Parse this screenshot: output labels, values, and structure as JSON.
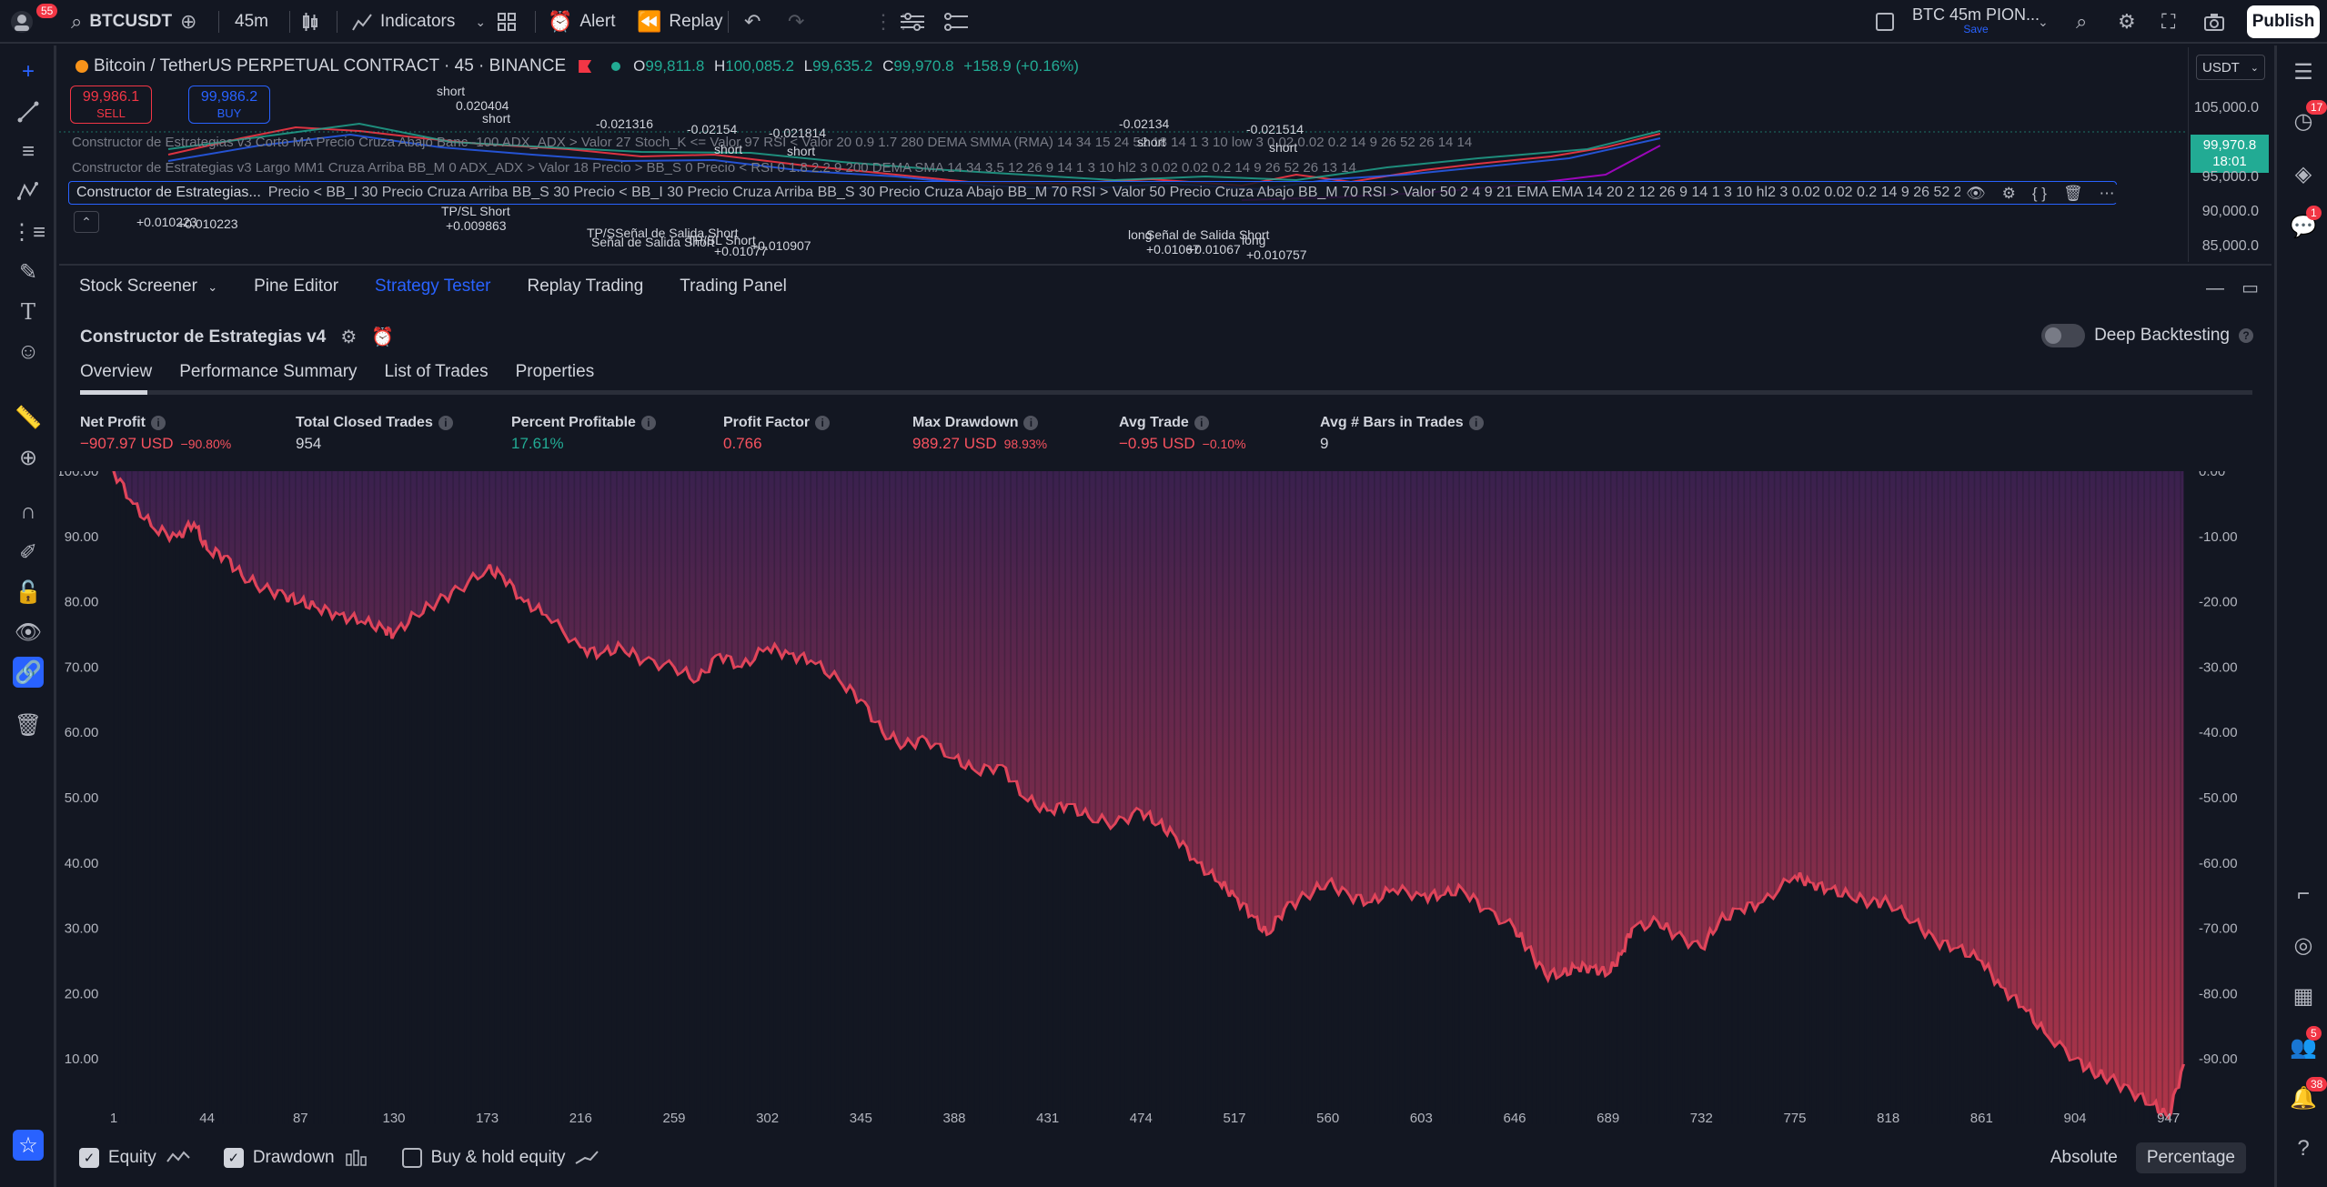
{
  "topbar": {
    "notif_badge": "55",
    "symbol": "BTCUSDT",
    "interval": "45m",
    "indicators": "Indicators",
    "alert": "Alert",
    "replay": "Replay",
    "layout_name": "BTC 45m PION...",
    "layout_save": "Save",
    "publish": "Publish"
  },
  "chart": {
    "title": "Bitcoin / TetherUS PERPETUAL CONTRACT · 45 · BINANCE",
    "ohlc": {
      "o_label": "O",
      "o": "99,811.8",
      "h_label": "H",
      "h": "100,085.2",
      "l_label": "L",
      "l": "99,635.2",
      "c_label": "C",
      "c": "99,970.8",
      "change": "+158.9 (+0.16%)"
    },
    "sell_price": "99,986.1",
    "sell_label": "SELL",
    "buy_price": "99,986.2",
    "buy_label": "BUY",
    "currency": "USDT",
    "price_ticks": [
      "105,000.0",
      "95,000.0",
      "90,000.0",
      "85,000.0"
    ],
    "current_price": "99,970.8",
    "current_time": "18:01",
    "indicator_1": "Constructor de Estrategias v3 Corto MA Precio Cruza Abajo Banc -100 ADX_ADX > Valor 27 Stoch_K <= Valor 97 RSI < Valor 20 0.9 1.7 280 DEMA SMMA (RMA) 14 34 15 24 52 18 14 1 3 10 low 3 0.02 0.02 0.2 14 9 26 52 26 14 14",
    "indicator_2": "Constructor de Estrategias v3 Largo MM1 Cruza Arriba BB_M 0 ADX_ADX > Valor 18 Precio > BB_S 0 Precio < RSI 0 1.8 2.2 9 200 DEMA SMA 14 34 3.5 12 26 9 14 1 3 10 hl2 3 0.02 0.02 0.2 14 9 26 52 26 13 14",
    "indicator_3_name": "Constructor de Estrategias...",
    "indicator_3_params": "Precio < BB_I 30 Precio Cruza Arriba BB_S 30 Precio < BB_I 30 Precio Cruza Arriba BB_S 30 Precio Cruza Abajo BB_M 70 RSI > Valor 50 Precio Cruza Abajo BB_M 70 RSI > Valor 50 2 4 9 21 EMA EMA 14 20 2 12 26 9 14 1 3 10 hl2 3 0.02 0.02 0.2 14 9 26 52 26 1...",
    "annotations": [
      "short",
      "0.020404",
      "short",
      "-0.021316",
      "-0.02154",
      "short",
      "-0.021814",
      "short",
      "-0.02134",
      "short",
      "-0.021514",
      "short",
      "+0.010223",
      "+0.010223",
      "TP/SL Short",
      "+0.009863",
      "TP/SSeñal de Salida Short",
      "Señal de Salida Short",
      "TP/SL Short",
      "+0.010907",
      "+0.01077",
      "Señal de Salida Short",
      "+0.01067",
      "+0.01067",
      "long",
      "long",
      "+0.010757"
    ]
  },
  "panel": {
    "tabs": [
      "Stock Screener",
      "Pine Editor",
      "Strategy Tester",
      "Replay Trading",
      "Trading Panel"
    ],
    "active_tab": "Strategy Tester",
    "strategy_name": "Constructor de Estrategias v4",
    "deep_backtesting": "Deep Backtesting",
    "subtabs": [
      "Overview",
      "Performance Summary",
      "List of Trades",
      "Properties"
    ],
    "metrics": [
      {
        "label": "Net Profit",
        "value": "−907.97 USD",
        "sub": "−90.80%",
        "tone": "neg"
      },
      {
        "label": "Total Closed Trades",
        "value": "954",
        "sub": "",
        "tone": "plain"
      },
      {
        "label": "Percent Profitable",
        "value": "17.61%",
        "sub": "",
        "tone": "pos"
      },
      {
        "label": "Profit Factor",
        "value": "0.766",
        "sub": "",
        "tone": "neg"
      },
      {
        "label": "Max Drawdown",
        "value": "989.27 USD",
        "sub": "98.93%",
        "tone": "neg"
      },
      {
        "label": "Avg Trade",
        "value": "−0.95 USD",
        "sub": "−0.10%",
        "tone": "neg"
      },
      {
        "label": "Avg # Bars in Trades",
        "value": "9",
        "sub": "",
        "tone": "plain"
      }
    ],
    "legend": {
      "equity": "Equity",
      "drawdown": "Drawdown",
      "buy_hold": "Buy & hold equity"
    },
    "modes": {
      "absolute": "Absolute",
      "percentage": "Percentage"
    }
  },
  "chart_data": {
    "type": "area",
    "left_axis_ticks": [
      "100.00",
      "90.00",
      "80.00",
      "70.00",
      "60.00",
      "50.00",
      "40.00",
      "30.00",
      "20.00",
      "10.00"
    ],
    "right_axis_ticks": [
      "0.00",
      "-10.00",
      "-20.00",
      "-30.00",
      "-40.00",
      "-50.00",
      "-60.00",
      "-70.00",
      "-80.00",
      "-90.00"
    ],
    "x_ticks": [
      "1",
      "44",
      "87",
      "130",
      "173",
      "216",
      "259",
      "302",
      "345",
      "388",
      "431",
      "474",
      "517",
      "560",
      "603",
      "646",
      "689",
      "732",
      "775",
      "818",
      "861",
      "904",
      "947"
    ],
    "ylim": [
      0,
      100
    ],
    "xlim": [
      1,
      954
    ],
    "series": [
      {
        "name": "Equity",
        "x": [
          1,
          10,
          20,
          30,
          38,
          44,
          52,
          60,
          70,
          80,
          87,
          95,
          105,
          115,
          125,
          130,
          140,
          150,
          160,
          173,
          180,
          190,
          200,
          216,
          225,
          235,
          245,
          259,
          270,
          280,
          290,
          302,
          312,
          322,
          335,
          345,
          355,
          365,
          375,
          388,
          398,
          410,
          420,
          431,
          440,
          450,
          462,
          474,
          482,
          490,
          500,
          510,
          517,
          525,
          532,
          540,
          550,
          560,
          570,
          580,
          590,
          603,
          612,
          622,
          632,
          646,
          652,
          660,
          668,
          675,
          682,
          689,
          695,
          700,
          712,
          720,
          732,
          740,
          750,
          760,
          775,
          782,
          790,
          800,
          810,
          818,
          830,
          840,
          850,
          861,
          870,
          880,
          890,
          904,
          912,
          920,
          930,
          940,
          947,
          954
        ],
        "values": [
          100,
          95,
          91,
          90,
          92,
          88,
          87,
          84,
          82,
          81,
          80,
          79,
          78,
          77,
          76,
          75,
          78,
          80,
          82,
          85,
          84,
          80,
          78,
          73,
          72,
          73,
          71,
          70,
          68,
          72,
          70,
          73,
          72,
          71,
          68,
          65,
          60,
          58,
          59,
          56,
          54,
          55,
          50,
          48,
          49,
          47,
          46,
          48,
          46,
          44,
          40,
          37,
          35,
          32,
          29,
          33,
          35,
          37,
          35,
          34,
          36,
          35,
          35,
          36,
          33,
          30,
          27,
          23,
          23,
          24,
          24,
          23,
          26,
          30,
          31,
          29,
          27,
          31,
          33,
          34,
          38,
          37,
          36,
          35,
          34,
          34,
          31,
          28,
          27,
          25,
          21,
          18,
          14,
          10,
          8,
          7,
          5,
          3,
          1,
          9.2
        ]
      }
    ]
  }
}
